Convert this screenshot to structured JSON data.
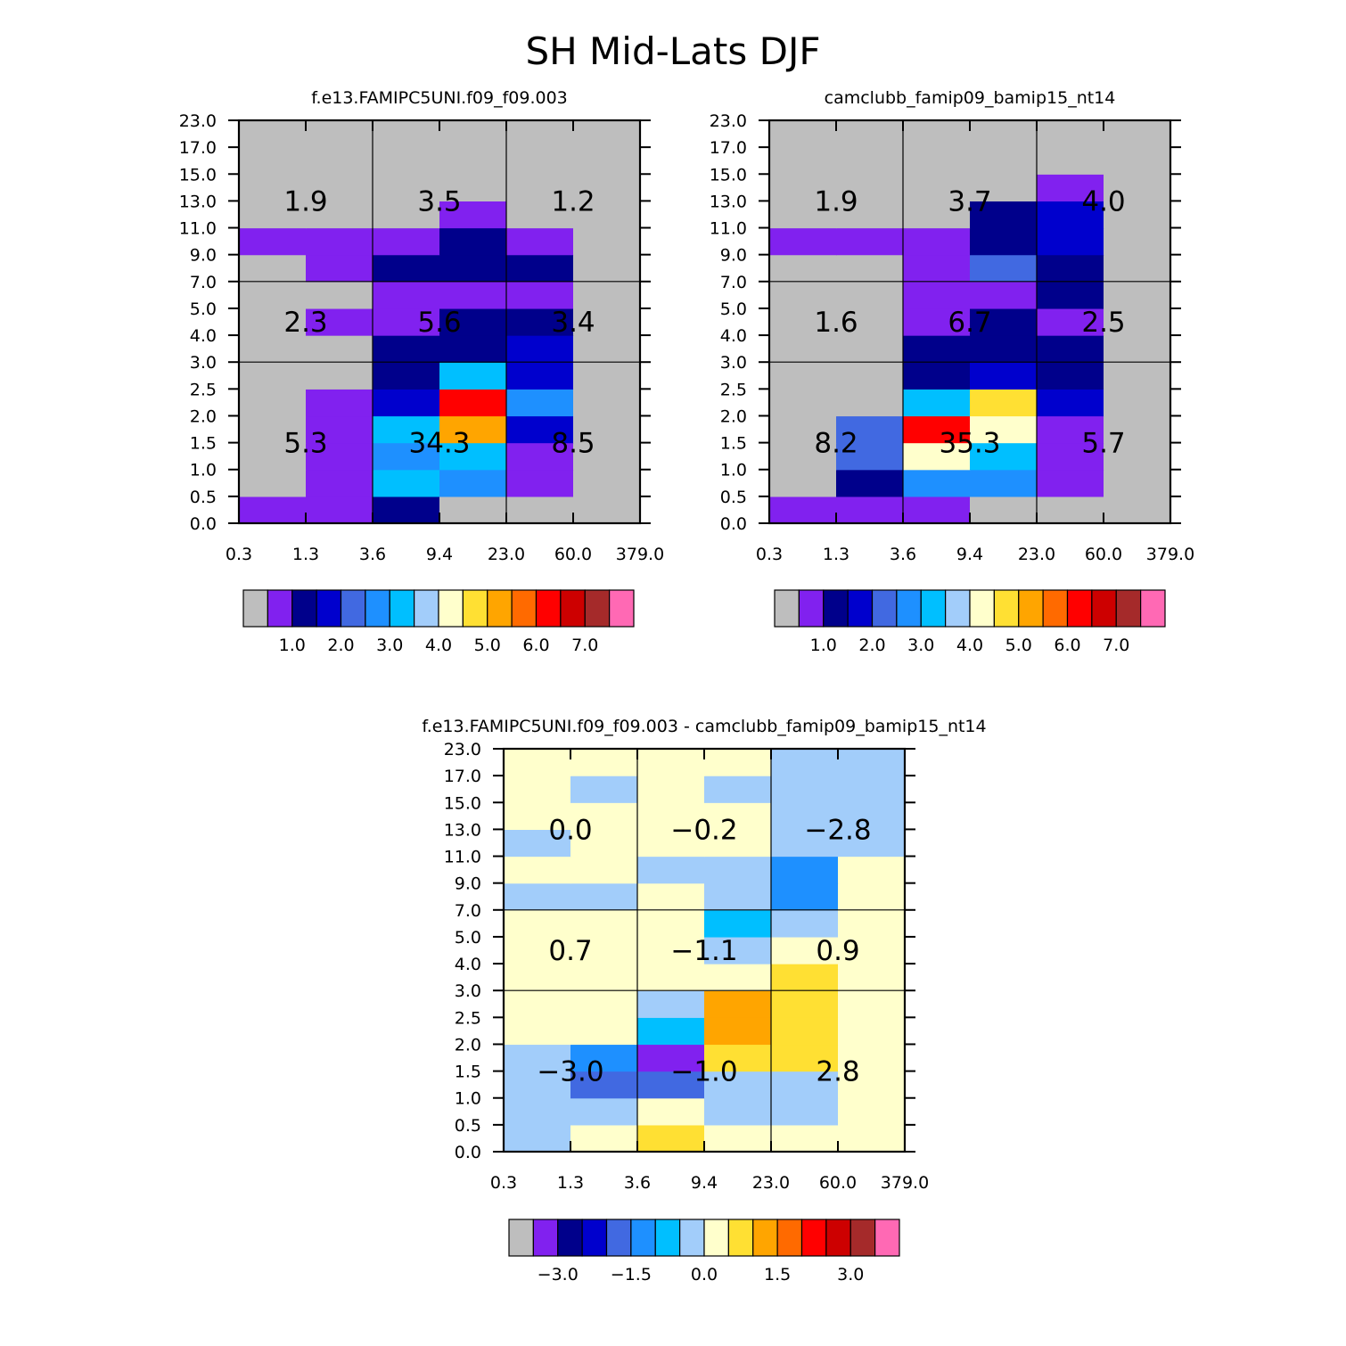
{
  "title": "SH Mid-Lats DJF",
  "colors": {
    "palette": [
      "#bebebe",
      "#8121ef",
      "#00008b",
      "#0000cd",
      "#4169e1",
      "#1e90ff",
      "#00bfff",
      "#a2cdfa",
      "#ffffcc",
      "#ffe033",
      "#ffa500",
      "#ff6a00",
      "#ff0000",
      "#cd0000",
      "#a52a2a",
      "#ff69b4"
    ]
  },
  "chart_data": [
    {
      "type": "heatmap",
      "title": "f.e13.FAMIPC5UNI.f09_f09.003",
      "x_ticks": [
        "0.3",
        "1.3",
        "3.6",
        "9.4",
        "23.0",
        "60.0",
        "379.0"
      ],
      "y_ticks": [
        "0.0",
        "0.5",
        "1.0",
        "1.5",
        "2.0",
        "2.5",
        "3.0",
        "4.0",
        "5.0",
        "7.0",
        "9.0",
        "11.0",
        "13.0",
        "15.0",
        "17.0",
        "23.0"
      ],
      "grid": [
        [
          1,
          1,
          2,
          0,
          0,
          0
        ],
        [
          0,
          1,
          6,
          5,
          1,
          0
        ],
        [
          0,
          1,
          5,
          6,
          1,
          0
        ],
        [
          0,
          1,
          6,
          10,
          3,
          0
        ],
        [
          0,
          1,
          3,
          12,
          5,
          0
        ],
        [
          0,
          0,
          2,
          6,
          3,
          0
        ],
        [
          0,
          0,
          2,
          2,
          3,
          0
        ],
        [
          0,
          1,
          1,
          2,
          2,
          0
        ],
        [
          0,
          0,
          1,
          1,
          1,
          0
        ],
        [
          0,
          1,
          2,
          2,
          2,
          0
        ],
        [
          1,
          1,
          1,
          2,
          1,
          0
        ],
        [
          0,
          0,
          0,
          1,
          0,
          0
        ],
        [
          0,
          0,
          0,
          0,
          0,
          0
        ],
        [
          0,
          0,
          0,
          0,
          0,
          0
        ],
        [
          0,
          0,
          0,
          0,
          0,
          0
        ]
      ],
      "box_values": [
        [
          "5.3",
          "34.3",
          "8.5"
        ],
        [
          "2.3",
          "5.6",
          "3.4"
        ],
        [
          "1.9",
          "3.5",
          "1.2"
        ]
      ],
      "colorbar_labels": [
        "1.0",
        "2.0",
        "3.0",
        "4.0",
        "5.0",
        "6.0",
        "7.0"
      ]
    },
    {
      "type": "heatmap",
      "title": "camclubb_famip09_bamip15_nt14",
      "x_ticks": [
        "0.3",
        "1.3",
        "3.6",
        "9.4",
        "23.0",
        "60.0",
        "379.0"
      ],
      "y_ticks": [
        "0.0",
        "0.5",
        "1.0",
        "1.5",
        "2.0",
        "2.5",
        "3.0",
        "4.0",
        "5.0",
        "7.0",
        "9.0",
        "11.0",
        "13.0",
        "15.0",
        "17.0",
        "23.0"
      ],
      "grid": [
        [
          1,
          1,
          1,
          0,
          0,
          0
        ],
        [
          0,
          2,
          5,
          5,
          1,
          0
        ],
        [
          0,
          4,
          8,
          6,
          1,
          0
        ],
        [
          0,
          4,
          12,
          8,
          1,
          0
        ],
        [
          0,
          0,
          6,
          9,
          3,
          0
        ],
        [
          0,
          0,
          2,
          3,
          2,
          0
        ],
        [
          0,
          0,
          2,
          2,
          2,
          0
        ],
        [
          0,
          0,
          1,
          2,
          1,
          0
        ],
        [
          0,
          0,
          1,
          1,
          2,
          0
        ],
        [
          0,
          0,
          1,
          4,
          2,
          0
        ],
        [
          1,
          1,
          1,
          2,
          3,
          0
        ],
        [
          0,
          0,
          0,
          2,
          3,
          0
        ],
        [
          0,
          0,
          0,
          0,
          1,
          0
        ],
        [
          0,
          0,
          0,
          0,
          0,
          0
        ],
        [
          0,
          0,
          0,
          0,
          0,
          0
        ]
      ],
      "box_values": [
        [
          "8.2",
          "35.3",
          "5.7"
        ],
        [
          "1.6",
          "6.7",
          "2.5"
        ],
        [
          "1.9",
          "3.7",
          "4.0"
        ]
      ],
      "colorbar_labels": [
        "1.0",
        "2.0",
        "3.0",
        "4.0",
        "5.0",
        "6.0",
        "7.0"
      ]
    },
    {
      "type": "heatmap",
      "title": "f.e13.FAMIPC5UNI.f09_f09.003 - camclubb_famip09_bamip15_nt14",
      "x_ticks": [
        "0.3",
        "1.3",
        "3.6",
        "9.4",
        "23.0",
        "60.0",
        "379.0"
      ],
      "y_ticks": [
        "0.0",
        "0.5",
        "1.0",
        "1.5",
        "2.0",
        "2.5",
        "3.0",
        "4.0",
        "5.0",
        "7.0",
        "9.0",
        "11.0",
        "13.0",
        "15.0",
        "17.0",
        "23.0"
      ],
      "grid": [
        [
          7,
          8,
          9,
          8,
          8,
          8
        ],
        [
          7,
          7,
          8,
          7,
          7,
          8
        ],
        [
          7,
          4,
          4,
          7,
          7,
          8
        ],
        [
          7,
          5,
          1,
          9,
          9,
          8
        ],
        [
          8,
          8,
          6,
          10,
          9,
          8
        ],
        [
          8,
          8,
          7,
          10,
          9,
          8
        ],
        [
          8,
          8,
          8,
          8,
          9,
          8
        ],
        [
          8,
          8,
          8,
          7,
          8,
          8
        ],
        [
          8,
          8,
          8,
          6,
          7,
          8
        ],
        [
          7,
          7,
          8,
          7,
          5,
          8
        ],
        [
          8,
          8,
          7,
          7,
          5,
          8
        ],
        [
          7,
          8,
          8,
          8,
          7,
          7
        ],
        [
          8,
          8,
          8,
          8,
          7,
          7
        ],
        [
          8,
          7,
          8,
          7,
          7,
          7
        ],
        [
          8,
          8,
          8,
          8,
          7,
          7
        ]
      ],
      "box_values": [
        [
          "−3.0",
          "−1.0",
          "2.8"
        ],
        [
          "0.7",
          "−1.1",
          "0.9"
        ],
        [
          "0.0",
          "−0.2",
          "−2.8"
        ]
      ],
      "colorbar_labels": [
        "−3.0",
        "−1.5",
        "0.0",
        "1.5",
        "3.0"
      ]
    }
  ]
}
